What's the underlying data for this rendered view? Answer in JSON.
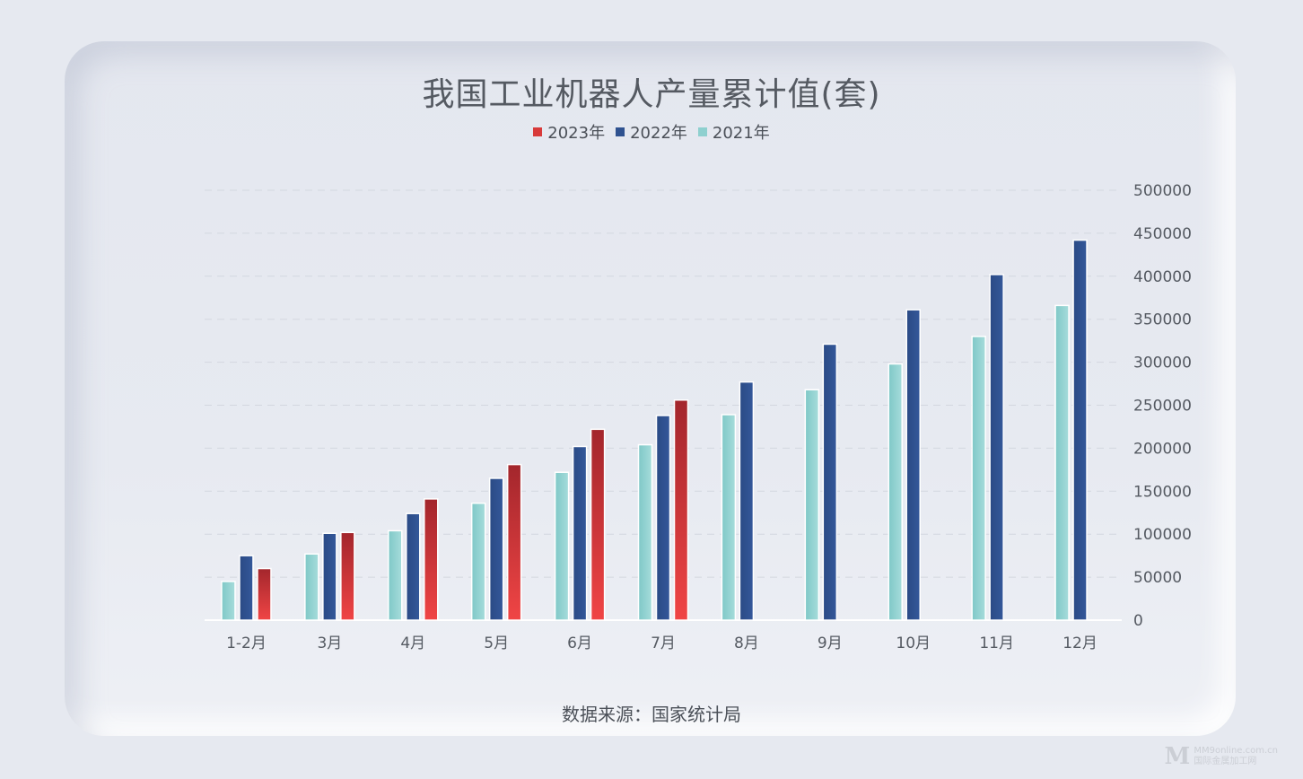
{
  "chart_data": {
    "type": "bar",
    "title": "我国工业机器人产量累计值(套)",
    "categories": [
      "1-2月",
      "3月",
      "4月",
      "5月",
      "6月",
      "7月",
      "8月",
      "9月",
      "10月",
      "11月",
      "12月"
    ],
    "series": [
      {
        "name": "2021年",
        "color": "#8ed0cf",
        "values": [
          45000,
          77000,
          104000,
          136000,
          172000,
          204000,
          239000,
          268000,
          298000,
          330000,
          366000
        ]
      },
      {
        "name": "2022年",
        "color": "#2f5290",
        "values": [
          75000,
          101000,
          124000,
          165000,
          202000,
          238000,
          277000,
          321000,
          361000,
          402000,
          442000
        ]
      },
      {
        "name": "2023年",
        "color": "#d83a3a",
        "values": [
          60000,
          102000,
          141000,
          181000,
          222000,
          256000,
          null,
          null,
          null,
          null,
          null
        ]
      }
    ],
    "legend_order": [
      "2023年",
      "2022年",
      "2021年"
    ],
    "legend_position": "top",
    "ylim": [
      0,
      500000
    ],
    "yticks": [
      0,
      50000,
      100000,
      150000,
      200000,
      250000,
      300000,
      350000,
      400000,
      450000,
      500000
    ],
    "y_axis_side": "right",
    "grid": true,
    "xlabel": "",
    "ylabel": ""
  },
  "source_text": "数据来源：国家统计局",
  "watermark": {
    "line1": "MM9online.com.cn",
    "line2": "国际金属加工网",
    "logo": "M"
  }
}
